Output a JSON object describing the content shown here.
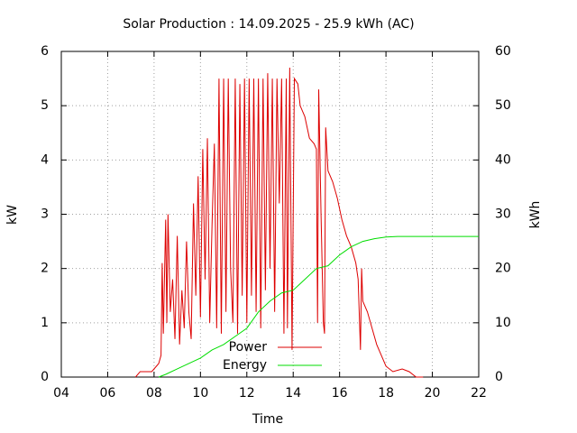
{
  "chart_data": {
    "type": "line",
    "title": "Solar Production : 14.09.2025 - 25.9 kWh (AC)",
    "x_label": "Time",
    "y_label": "kW",
    "y2_label": "kWh",
    "xlim": [
      4,
      22
    ],
    "xticks": [
      {
        "value": 4,
        "label": "04"
      },
      {
        "value": 6,
        "label": "06"
      },
      {
        "value": 8,
        "label": "08"
      },
      10,
      12,
      14,
      16,
      18,
      20,
      22
    ],
    "ylim": [
      0,
      6
    ],
    "yticks": [
      0,
      1,
      2,
      3,
      4,
      5,
      6
    ],
    "y2lim": [
      0,
      60
    ],
    "y2ticks": [
      0,
      10,
      20,
      30,
      40,
      50,
      60
    ],
    "grid": true,
    "legend": "bottom",
    "series": [
      {
        "name": "Power",
        "color": "#dd0000",
        "axis": "y",
        "x": [
          7.2,
          7.4,
          7.9,
          8.2,
          8.3,
          8.35,
          8.4,
          8.5,
          8.55,
          8.6,
          8.7,
          8.8,
          8.9,
          9.0,
          9.1,
          9.2,
          9.3,
          9.4,
          9.5,
          9.6,
          9.7,
          9.8,
          9.9,
          10.0,
          10.1,
          10.2,
          10.3,
          10.4,
          10.5,
          10.6,
          10.7,
          10.8,
          10.9,
          11.0,
          11.1,
          11.2,
          11.3,
          11.4,
          11.5,
          11.6,
          11.7,
          11.8,
          11.9,
          12.0,
          12.1,
          12.2,
          12.3,
          12.4,
          12.5,
          12.6,
          12.7,
          12.8,
          12.9,
          13.0,
          13.1,
          13.2,
          13.3,
          13.4,
          13.5,
          13.6,
          13.7,
          13.75,
          13.85,
          13.95,
          14.05,
          14.2,
          14.3,
          14.5,
          14.7,
          14.9,
          15.0,
          15.05,
          15.1,
          15.2,
          15.3,
          15.35,
          15.4,
          15.5,
          15.7,
          15.9,
          16.1,
          16.3,
          16.5,
          16.7,
          16.8,
          16.9,
          16.95,
          17.0,
          17.2,
          17.4,
          17.6,
          17.8,
          18.0,
          18.3,
          18.7,
          19.0,
          19.3,
          19.6
        ],
        "values": [
          0,
          0.1,
          0.1,
          0.25,
          0.4,
          2.1,
          0.8,
          2.9,
          1.0,
          3.0,
          1.2,
          1.8,
          0.7,
          2.6,
          0.6,
          1.6,
          0.9,
          2.5,
          1.2,
          0.7,
          3.2,
          1.5,
          3.7,
          1.1,
          4.2,
          1.8,
          4.4,
          1.0,
          2.8,
          4.3,
          0.9,
          5.5,
          0.8,
          5.5,
          1.2,
          5.5,
          2.0,
          1.0,
          5.5,
          0.8,
          5.4,
          1.5,
          5.5,
          1.0,
          5.5,
          1.5,
          5.5,
          1.2,
          5.5,
          0.9,
          5.5,
          1.6,
          5.6,
          2.0,
          5.5,
          1.2,
          5.5,
          3.2,
          5.5,
          0.8,
          5.5,
          0.9,
          5.7,
          0.5,
          5.5,
          5.4,
          5.0,
          4.8,
          4.4,
          4.3,
          4.2,
          1.0,
          5.3,
          3.0,
          1.0,
          0.8,
          4.6,
          3.8,
          3.6,
          3.3,
          2.9,
          2.6,
          2.4,
          2.1,
          1.8,
          0.5,
          2.0,
          1.4,
          1.2,
          0.9,
          0.6,
          0.4,
          0.2,
          0.1,
          0.15,
          0.1,
          0.0,
          0
        ]
      },
      {
        "name": "Energy",
        "color": "#00dd00",
        "axis": "y2",
        "x": [
          8.2,
          8.5,
          9.0,
          9.5,
          10.0,
          10.5,
          11.0,
          11.5,
          12.0,
          12.5,
          13.0,
          13.5,
          14.0,
          14.5,
          15.0,
          15.5,
          16.0,
          16.5,
          17.0,
          17.5,
          18.0,
          18.5,
          19.0,
          22.0
        ],
        "values": [
          0,
          0.5,
          1.5,
          2.5,
          3.5,
          5,
          6,
          7.5,
          9,
          12,
          14,
          15.5,
          16,
          18,
          20,
          20.5,
          22.5,
          24,
          25,
          25.5,
          25.8,
          25.9,
          25.9,
          25.9
        ]
      }
    ]
  }
}
